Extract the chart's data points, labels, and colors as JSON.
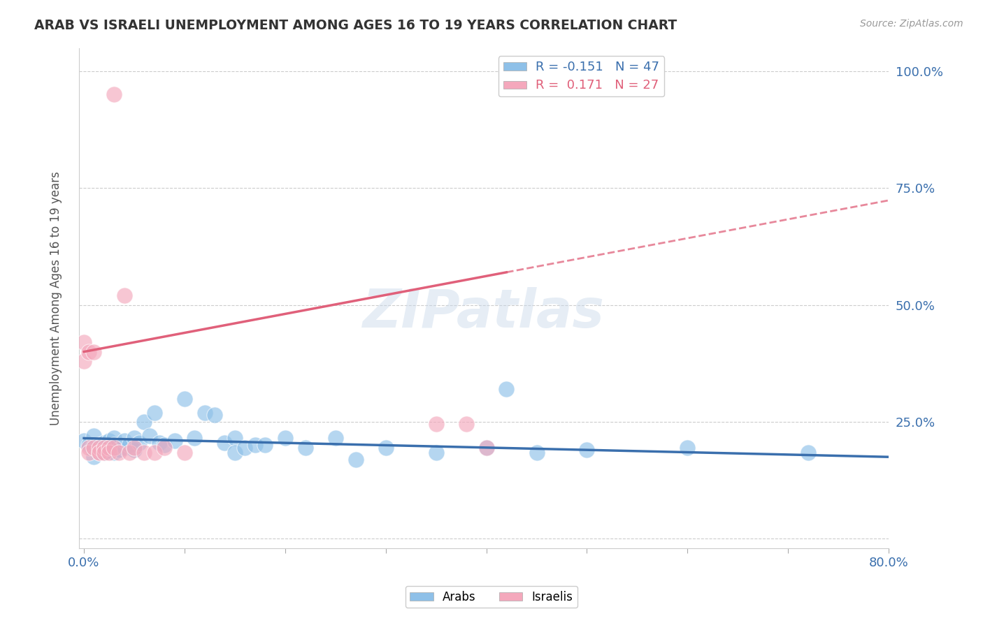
{
  "title": "ARAB VS ISRAELI UNEMPLOYMENT AMONG AGES 16 TO 19 YEARS CORRELATION CHART",
  "source": "Source: ZipAtlas.com",
  "ylabel": "Unemployment Among Ages 16 to 19 years",
  "yticks": [
    0.0,
    0.25,
    0.5,
    0.75,
    1.0
  ],
  "ytick_labels": [
    "",
    "25.0%",
    "50.0%",
    "75.0%",
    "100.0%"
  ],
  "arab_r": -0.151,
  "arab_n": 47,
  "israeli_r": 0.171,
  "israeli_n": 27,
  "arab_color": "#8ec0e8",
  "israeli_color": "#f4a8bc",
  "arab_line_color": "#3a6fad",
  "israeli_line_color": "#e0607a",
  "watermark": "ZIPatlas",
  "arab_x": [
    0.0,
    0.005,
    0.008,
    0.01,
    0.01,
    0.015,
    0.02,
    0.02,
    0.025,
    0.03,
    0.03,
    0.03,
    0.035,
    0.04,
    0.04,
    0.045,
    0.05,
    0.05,
    0.055,
    0.06,
    0.065,
    0.07,
    0.075,
    0.08,
    0.09,
    0.1,
    0.11,
    0.12,
    0.13,
    0.14,
    0.15,
    0.15,
    0.16,
    0.17,
    0.18,
    0.2,
    0.22,
    0.25,
    0.27,
    0.3,
    0.35,
    0.4,
    0.42,
    0.45,
    0.5,
    0.6,
    0.72
  ],
  "arab_y": [
    0.21,
    0.2,
    0.195,
    0.22,
    0.175,
    0.2,
    0.205,
    0.185,
    0.21,
    0.215,
    0.2,
    0.185,
    0.19,
    0.195,
    0.21,
    0.2,
    0.215,
    0.19,
    0.205,
    0.25,
    0.22,
    0.27,
    0.205,
    0.2,
    0.21,
    0.3,
    0.215,
    0.27,
    0.265,
    0.205,
    0.215,
    0.185,
    0.195,
    0.2,
    0.2,
    0.215,
    0.195,
    0.215,
    0.17,
    0.195,
    0.185,
    0.195,
    0.32,
    0.185,
    0.19,
    0.195,
    0.185
  ],
  "israeli_x": [
    0.0,
    0.0,
    0.005,
    0.005,
    0.005,
    0.01,
    0.01,
    0.015,
    0.015,
    0.015,
    0.02,
    0.02,
    0.025,
    0.025,
    0.03,
    0.03,
    0.035,
    0.04,
    0.045,
    0.05,
    0.06,
    0.07,
    0.08,
    0.1,
    0.35,
    0.38,
    0.4
  ],
  "israeli_y": [
    0.42,
    0.38,
    0.4,
    0.195,
    0.185,
    0.4,
    0.195,
    0.185,
    0.195,
    0.185,
    0.195,
    0.185,
    0.195,
    0.185,
    0.95,
    0.195,
    0.185,
    0.52,
    0.185,
    0.195,
    0.185,
    0.185,
    0.195,
    0.185,
    0.245,
    0.245,
    0.195
  ]
}
